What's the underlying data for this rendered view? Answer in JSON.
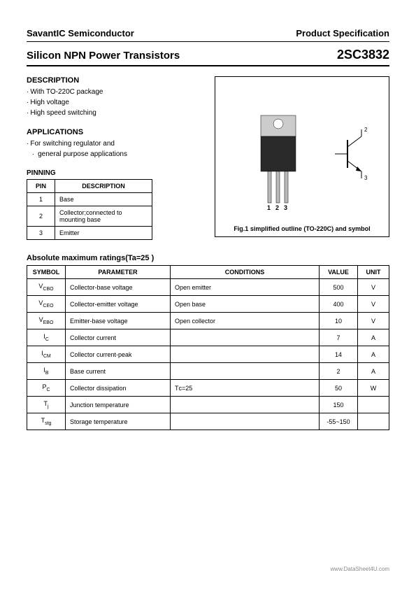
{
  "header": {
    "company": "SavantIC Semiconductor",
    "doc_type": "Product Specification"
  },
  "title": {
    "product_family": "Silicon NPN Power Transistors",
    "part_number": "2SC3832"
  },
  "description": {
    "heading": "DESCRIPTION",
    "items": [
      "With TO-220C package",
      "High voltage",
      "High speed switching"
    ]
  },
  "applications": {
    "heading": "APPLICATIONS",
    "items": [
      "For switching regulator and",
      "  general purpose applications"
    ]
  },
  "pinning": {
    "heading": "PINNING",
    "columns": [
      "PIN",
      "DESCRIPTION"
    ],
    "rows": [
      [
        "1",
        "Base"
      ],
      [
        "2",
        "Collector;connected to mounting base"
      ],
      [
        "3",
        "Emitter"
      ]
    ]
  },
  "figure": {
    "caption": "Fig.1 simplified outline (TO-220C) and symbol",
    "pin_labels": "1  2  3",
    "symbol_pins": {
      "p1": "1",
      "p2": "2",
      "p3": "3"
    },
    "package": {
      "body_color": "#333333",
      "tab_color": "#cccccc",
      "lead_color": "#bbbbbb"
    }
  },
  "ratings": {
    "heading": "Absolute maximum ratings(Ta=25   )",
    "columns": [
      "SYMBOL",
      "PARAMETER",
      "CONDITIONS",
      "VALUE",
      "UNIT"
    ],
    "rows": [
      {
        "sym": "V",
        "sub": "CBO",
        "param": "Collector-base voltage",
        "cond": "Open emitter",
        "val": "500",
        "unit": "V"
      },
      {
        "sym": "V",
        "sub": "CEO",
        "param": "Collector-emitter voltage",
        "cond": "Open base",
        "val": "400",
        "unit": "V"
      },
      {
        "sym": "V",
        "sub": "EBO",
        "param": "Emitter-base voltage",
        "cond": "Open collector",
        "val": "10",
        "unit": "V"
      },
      {
        "sym": "I",
        "sub": "C",
        "param": "Collector current",
        "cond": "",
        "val": "7",
        "unit": "A"
      },
      {
        "sym": "I",
        "sub": "CM",
        "param": "Collector current-peak",
        "cond": "",
        "val": "14",
        "unit": "A"
      },
      {
        "sym": "I",
        "sub": "B",
        "param": "Base current",
        "cond": "",
        "val": "2",
        "unit": "A"
      },
      {
        "sym": "P",
        "sub": "C",
        "param": "Collector dissipation",
        "cond": "Tᴄ=25",
        "val": "50",
        "unit": "W"
      },
      {
        "sym": "T",
        "sub": "j",
        "param": "Junction temperature",
        "cond": "",
        "val": "150",
        "unit": ""
      },
      {
        "sym": "T",
        "sub": "stg",
        "param": "Storage temperature",
        "cond": "",
        "val": "-55~150",
        "unit": ""
      }
    ]
  },
  "footer": "www.DataSheet4U.com"
}
